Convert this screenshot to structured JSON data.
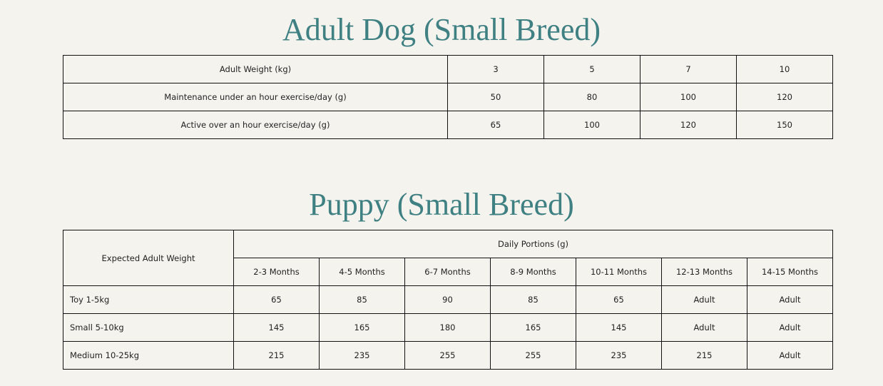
{
  "adult": {
    "title": "Adult Dog (Small Breed)",
    "rows": [
      [
        "Adult Weight (kg)",
        "3",
        "5",
        "7",
        "10"
      ],
      [
        "Maintenance under an hour exercise/day (g)",
        "50",
        "80",
        "100",
        "120"
      ],
      [
        "Active over an hour exercise/day (g)",
        "65",
        "100",
        "120",
        "150"
      ]
    ]
  },
  "puppy": {
    "title": "Puppy (Small Breed)",
    "corner": "Expected Adult Weight",
    "group_header": "Daily Portions (g)",
    "columns": [
      "2-3 Months",
      "4-5 Months",
      "6-7 Months",
      "8-9 Months",
      "10-11 Months",
      "12-13 Months",
      "14-15 Months"
    ],
    "rows": [
      {
        "label": "Toy 1-5kg",
        "values": [
          "65",
          "85",
          "90",
          "85",
          "65",
          "Adult",
          "Adult"
        ]
      },
      {
        "label": "Small 5-10kg",
        "values": [
          "145",
          "165",
          "180",
          "165",
          "145",
          "Adult",
          "Adult"
        ]
      },
      {
        "label": "Medium 10-25kg",
        "values": [
          "215",
          "235",
          "255",
          "255",
          "235",
          "215",
          "Adult"
        ]
      }
    ]
  }
}
